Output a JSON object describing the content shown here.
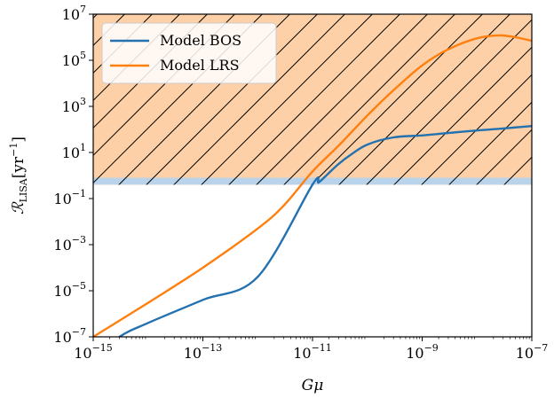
{
  "chart_data": {
    "type": "line",
    "xlabel": "Gμ",
    "ylabel": "R_LISA [yr⁻¹]",
    "xscale": "log",
    "yscale": "log",
    "xlim": [
      1e-15,
      1e-07
    ],
    "ylim": [
      1e-07,
      10000000.0
    ],
    "x_ticks": [
      {
        "exp": "-15",
        "value": 1e-15
      },
      {
        "exp": "-13",
        "value": 1e-13
      },
      {
        "exp": "-11",
        "value": 1e-11
      },
      {
        "exp": "-9",
        "value": 1e-09
      },
      {
        "exp": "-7",
        "value": 1e-07
      }
    ],
    "y_ticks": [
      {
        "exp": "-7",
        "value": 1e-07
      },
      {
        "exp": "-5",
        "value": 1e-05
      },
      {
        "exp": "-3",
        "value": 0.001
      },
      {
        "exp": "-1",
        "value": 0.1
      },
      {
        "exp": "1",
        "value": 10.0
      },
      {
        "exp": "3",
        "value": 1000.0
      },
      {
        "exp": "5",
        "value": 100000.0
      },
      {
        "exp": "7",
        "value": 10000000.0
      }
    ],
    "tick_base": "10",
    "shaded_regions": [
      {
        "ymin": 0.4,
        "ymax": 10000000.0,
        "color": "#fdd0a8",
        "hatch": true
      },
      {
        "ymin": 0.4,
        "ymax": 0.8,
        "color": "#b8d3ea",
        "hatch": false
      }
    ],
    "legend_position": "top-left",
    "series": [
      {
        "name": "Model BOS",
        "color": "#2471b0",
        "x": [
          1e-15,
          3e-15,
          1e-14,
          1e-13,
          1e-12,
          1e-11,
          1.3e-11,
          2e-11,
          3e-11,
          5e-11,
          1e-10,
          3e-10,
          1e-09,
          3e-09,
          1e-08,
          3e-08,
          1e-07
        ],
        "y": [
          1e-08,
          1e-07,
          4e-07,
          4e-06,
          4e-05,
          0.4,
          0.5,
          1.3,
          3.2,
          8,
          22,
          45,
          55,
          70,
          90,
          110,
          140
        ]
      },
      {
        "name": "Model LRS",
        "color": "#ff7f0e",
        "x": [
          1e-15,
          1e-14,
          1e-13,
          1e-12,
          3e-12,
          1e-11,
          3e-11,
          1e-10,
          3e-10,
          1e-09,
          3e-09,
          1e-08,
          2.5e-08,
          5e-08,
          1e-07
        ],
        "y": [
          1e-07,
          3e-06,
          0.0001,
          0.005,
          0.05,
          1.5,
          20,
          400,
          5000,
          60000,
          300000,
          900000,
          1200000,
          1000000,
          700000
        ]
      }
    ]
  }
}
